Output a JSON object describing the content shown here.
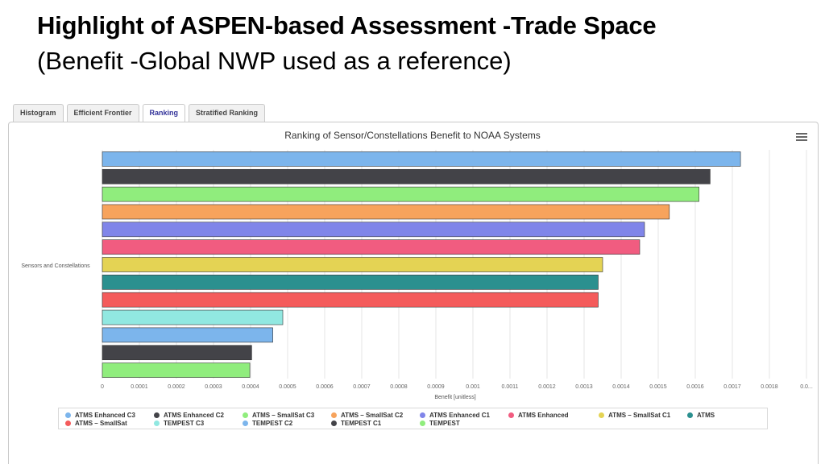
{
  "slide": {
    "title": "Highlight of ASPEN-based Assessment -Trade Space",
    "subtitle": "(Benefit -Global NWP used as a reference)"
  },
  "tabs": [
    {
      "label": "Histogram",
      "active": false
    },
    {
      "label": "Efficient Frontier",
      "active": false
    },
    {
      "label": "Ranking",
      "active": true
    },
    {
      "label": "Stratified Ranking",
      "active": false
    }
  ],
  "chart_data": {
    "type": "bar",
    "orientation": "horizontal",
    "title": "Ranking of Sensor/Constellations Benefit to NOAA Systems",
    "xlabel": "Benefit [unitless]",
    "ylabel": "Sensors and Constellations",
    "xlim": [
      0,
      0.0019
    ],
    "xticks": [
      "0",
      "0.0001",
      "0.0002",
      "0.0003",
      "0.0004",
      "0.0005",
      "0.0006",
      "0.0007",
      "0.0008",
      "0.0009",
      "0.001",
      "0.0011",
      "0.0012",
      "0.0013",
      "0.0014",
      "0.0015",
      "0.0016",
      "0.0017",
      "0.0018",
      "0.0..."
    ],
    "grid": true,
    "legend_position": "bottom",
    "series": [
      {
        "name": "ATMS Enhanced C3",
        "value": 0.001722,
        "color": "#7cb5ec"
      },
      {
        "name": "ATMS Enhanced C2",
        "value": 0.00164,
        "color": "#434348"
      },
      {
        "name": "ATMS – SmallSat C3",
        "value": 0.00161,
        "color": "#90ed7d"
      },
      {
        "name": "ATMS – SmallSat C2",
        "value": 0.00153,
        "color": "#f7a35c"
      },
      {
        "name": "ATMS Enhanced C1",
        "value": 0.001463,
        "color": "#8085e9"
      },
      {
        "name": "ATMS Enhanced",
        "value": 0.00145,
        "color": "#f15c80"
      },
      {
        "name": "ATMS – SmallSat C1",
        "value": 0.00135,
        "color": "#e4d354"
      },
      {
        "name": "ATMS",
        "value": 0.001338,
        "color": "#2b908f"
      },
      {
        "name": "ATMS – SmallSat",
        "value": 0.001338,
        "color": "#f45b5b"
      },
      {
        "name": "TEMPEST C3",
        "value": 0.000487,
        "color": "#91e8e1"
      },
      {
        "name": "TEMPEST C2",
        "value": 0.00046,
        "color": "#7cb5ec"
      },
      {
        "name": "TEMPEST C1",
        "value": 0.000403,
        "color": "#434348"
      },
      {
        "name": "TEMPEST",
        "value": 0.000398,
        "color": "#90ed7d"
      }
    ]
  },
  "menu_icon": "hamburger-menu-icon"
}
